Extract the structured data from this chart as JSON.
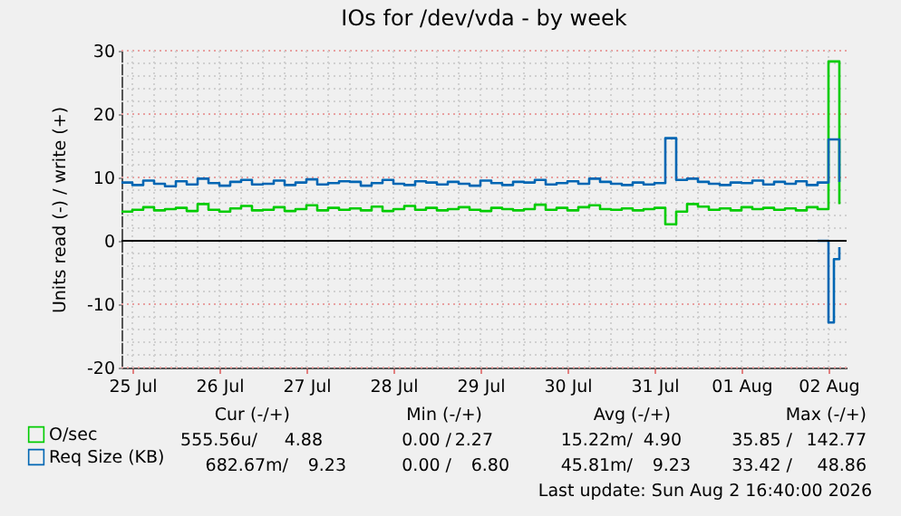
{
  "chart_data": {
    "type": "step",
    "title": "IOs for /dev/vda - by week",
    "ylabel": "Units read (-) / write (+)",
    "x": [
      "2026-07-25T09:00",
      "2026-07-25T12:00",
      "2026-07-25T15:00",
      "2026-07-25T18:00",
      "2026-07-25T21:00",
      "2026-07-26T00:00",
      "2026-07-26T03:00",
      "2026-07-26T06:00",
      "2026-07-26T09:00",
      "2026-07-26T12:00",
      "2026-07-26T15:00",
      "2026-07-26T18:00",
      "2026-07-26T21:00",
      "2026-07-27T00:00",
      "2026-07-27T03:00",
      "2026-07-27T06:00",
      "2026-07-27T09:00",
      "2026-07-27T12:00",
      "2026-07-27T15:00",
      "2026-07-27T18:00",
      "2026-07-27T21:00",
      "2026-07-28T00:00",
      "2026-07-28T03:00",
      "2026-07-28T06:00",
      "2026-07-28T09:00",
      "2026-07-28T12:00",
      "2026-07-28T15:00",
      "2026-07-28T18:00",
      "2026-07-28T21:00",
      "2026-07-29T00:00",
      "2026-07-29T03:00",
      "2026-07-29T06:00",
      "2026-07-29T09:00",
      "2026-07-29T12:00",
      "2026-07-29T15:00",
      "2026-07-29T18:00",
      "2026-07-29T21:00",
      "2026-07-30T00:00",
      "2026-07-30T03:00",
      "2026-07-30T06:00",
      "2026-07-30T09:00",
      "2026-07-30T12:00",
      "2026-07-30T15:00",
      "2026-07-30T18:00",
      "2026-07-30T21:00",
      "2026-07-31T00:00",
      "2026-07-31T03:00",
      "2026-07-31T06:00",
      "2026-07-31T09:00",
      "2026-07-31T12:00",
      "2026-07-31T15:00",
      "2026-07-31T18:00",
      "2026-07-31T21:00",
      "2026-08-01T00:00",
      "2026-08-01T03:00",
      "2026-08-01T06:00",
      "2026-08-01T09:00",
      "2026-08-01T12:00",
      "2026-08-01T15:00",
      "2026-08-01T18:00",
      "2026-08-01T21:00",
      "2026-08-02T00:00",
      "2026-08-02T03:00",
      "2026-08-02T06:00",
      "2026-08-02T09:00",
      "2026-08-02T12:00",
      "2026-08-02T15:00"
    ],
    "series": [
      {
        "name": "O/sec",
        "color": "#00cc00",
        "values": [
          4.6,
          4.9,
          5.3,
          4.8,
          5.0,
          5.2,
          4.7,
          5.8,
          4.9,
          4.6,
          5.1,
          5.5,
          4.8,
          4.9,
          5.3,
          4.7,
          5.0,
          5.6,
          4.8,
          5.2,
          4.9,
          5.1,
          4.8,
          5.4,
          4.7,
          5.0,
          5.5,
          4.9,
          5.2,
          4.8,
          5.0,
          5.3,
          4.9,
          4.7,
          5.2,
          5.0,
          4.8,
          5.0,
          5.7,
          4.9,
          5.2,
          4.8,
          5.3,
          5.6,
          5.0,
          4.9,
          5.1,
          4.8,
          5.0,
          5.2,
          2.6,
          4.6,
          5.8,
          5.4,
          4.9,
          5.1,
          4.8,
          5.3,
          5.0,
          5.2,
          4.9,
          5.1,
          4.8,
          5.3,
          5.0,
          28.3,
          5.8
        ]
      },
      {
        "name": "Req Size (KB)",
        "color": "#0066b3",
        "values": [
          9.2,
          8.8,
          9.5,
          9.0,
          8.6,
          9.4,
          8.9,
          9.8,
          9.1,
          8.7,
          9.3,
          9.6,
          8.9,
          9.0,
          9.5,
          8.8,
          9.2,
          9.7,
          8.9,
          9.1,
          9.4,
          9.3,
          8.7,
          9.1,
          9.6,
          9.0,
          8.8,
          9.4,
          9.2,
          8.9,
          9.3,
          9.0,
          8.7,
          9.5,
          9.1,
          8.8,
          9.3,
          9.2,
          9.6,
          8.9,
          9.1,
          9.4,
          9.0,
          9.8,
          9.3,
          9.0,
          8.8,
          9.2,
          8.9,
          9.1,
          16.2,
          9.6,
          9.8,
          9.3,
          9.0,
          8.8,
          9.2,
          9.1,
          9.5,
          8.9,
          9.3,
          9.0,
          9.4,
          8.8,
          9.2,
          16.0,
          9.3
        ]
      },
      {
        "color": "#0066b3",
        "x": [
          "2026-08-02T09:00",
          "2026-08-02T12:00",
          "2026-08-02T13:30",
          "2026-08-02T15:00"
        ],
        "values": [
          0,
          -12.9,
          -2.9,
          -1
        ]
      }
    ],
    "xlim": [
      "2026-07-25T09:00",
      "2026-08-02T17:00"
    ],
    "xticks": [
      {
        "value": "2026-07-25T12:00",
        "label": "25 Jul"
      },
      {
        "value": "2026-07-25T18:00",
        "label": null
      },
      {
        "value": "2026-07-26T00:00",
        "label": null
      },
      {
        "value": "2026-07-26T06:00",
        "label": null
      },
      {
        "value": "2026-07-26T12:00",
        "label": "26 Jul"
      },
      {
        "value": "2026-07-26T18:00",
        "label": null
      },
      {
        "value": "2026-07-27T00:00",
        "label": null
      },
      {
        "value": "2026-07-27T06:00",
        "label": null
      },
      {
        "value": "2026-07-27T12:00",
        "label": "27 Jul"
      },
      {
        "value": "2026-07-27T18:00",
        "label": null
      },
      {
        "value": "2026-07-28T00:00",
        "label": null
      },
      {
        "value": "2026-07-28T06:00",
        "label": null
      },
      {
        "value": "2026-07-28T12:00",
        "label": "28 Jul"
      },
      {
        "value": "2026-07-28T18:00",
        "label": null
      },
      {
        "value": "2026-07-29T00:00",
        "label": null
      },
      {
        "value": "2026-07-29T06:00",
        "label": null
      },
      {
        "value": "2026-07-29T12:00",
        "label": "29 Jul"
      },
      {
        "value": "2026-07-29T18:00",
        "label": null
      },
      {
        "value": "2026-07-30T00:00",
        "label": null
      },
      {
        "value": "2026-07-30T06:00",
        "label": null
      },
      {
        "value": "2026-07-30T12:00",
        "label": "30 Jul"
      },
      {
        "value": "2026-07-30T18:00",
        "label": null
      },
      {
        "value": "2026-07-31T00:00",
        "label": null
      },
      {
        "value": "2026-07-31T06:00",
        "label": null
      },
      {
        "value": "2026-07-31T12:00",
        "label": "31 Jul"
      },
      {
        "value": "2026-07-31T18:00",
        "label": null
      },
      {
        "value": "2026-08-01T00:00",
        "label": null
      },
      {
        "value": "2026-08-01T06:00",
        "label": null
      },
      {
        "value": "2026-08-01T12:00",
        "label": "01 Aug"
      },
      {
        "value": "2026-08-01T18:00",
        "label": null
      },
      {
        "value": "2026-08-02T00:00",
        "label": null
      },
      {
        "value": "2026-08-02T06:00",
        "label": null
      },
      {
        "value": "2026-08-02T12:00",
        "label": "02 Aug"
      }
    ],
    "ylim": [
      -20,
      30
    ],
    "yticks": [
      -20,
      {
        "value": -18,
        "label": null
      },
      {
        "value": -16,
        "label": null
      },
      {
        "value": -14,
        "label": null
      },
      {
        "value": -12,
        "label": null
      },
      -10,
      {
        "value": -8,
        "label": null
      },
      {
        "value": -6,
        "label": null
      },
      {
        "value": -4,
        "label": null
      },
      {
        "value": -2,
        "label": null
      },
      0,
      {
        "value": 2,
        "label": null
      },
      {
        "value": 4,
        "label": null
      },
      {
        "value": 6,
        "label": null
      },
      {
        "value": 8,
        "label": null
      },
      10,
      {
        "value": 12,
        "label": null
      },
      {
        "value": 14,
        "label": null
      },
      {
        "value": 16,
        "label": null
      },
      {
        "value": 18,
        "label": null
      },
      20,
      {
        "value": 22,
        "label": null
      },
      {
        "value": 24,
        "label": null
      },
      {
        "value": 26,
        "label": null
      },
      {
        "value": 28,
        "label": null
      },
      30
    ],
    "grid": true,
    "legend": "bottom left",
    "ref_lines": [
      {
        "axis": "y",
        "value": 0,
        "color": "#000000"
      }
    ],
    "annotations": [
      "Cur (-/+)",
      "Min (-/+)",
      "Avg (-/+)",
      "Max (-/+)",
      "555.56u/",
      "4.88",
      "0.00 /",
      "2.27",
      "15.22m/",
      "4.90",
      "35.85 /",
      "142.77",
      "682.67m/",
      "9.23",
      "0.00 /",
      "6.80",
      "45.81m/",
      "9.23",
      "33.42 /",
      "48.86",
      "Last update: Sun Aug  2 16:40:00 2026"
    ]
  }
}
